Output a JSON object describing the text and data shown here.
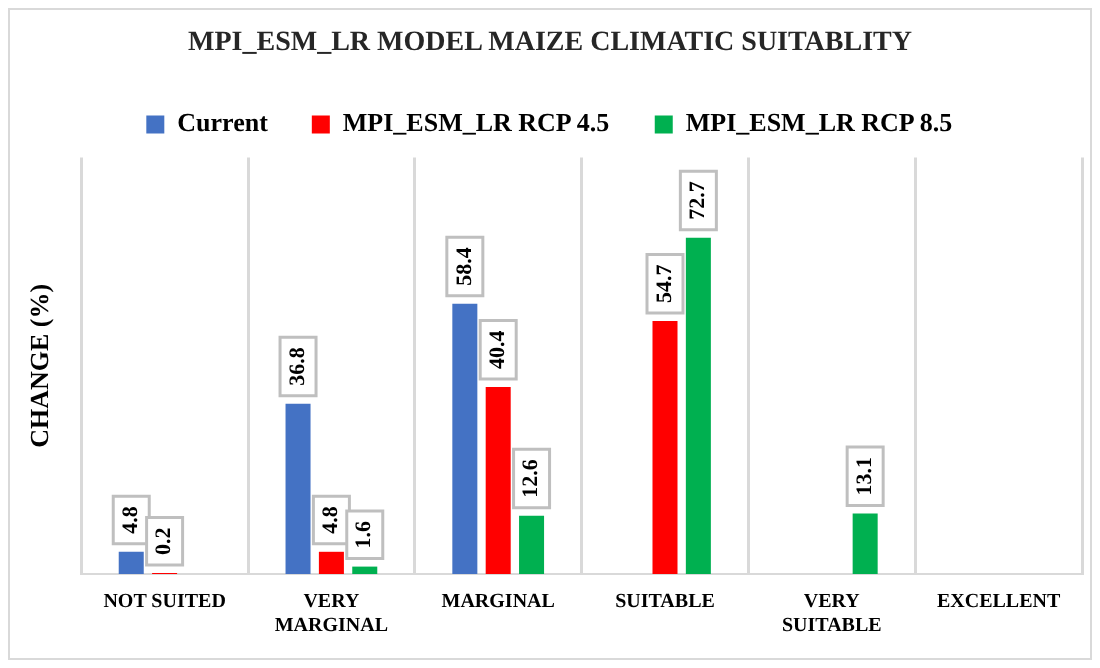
{
  "chart_data": {
    "type": "bar",
    "title": "MPI_ESM_LR MODEL MAIZE CLIMATIC SUITABLITY",
    "ylabel": "CHANGE (%)",
    "categories": [
      "NOT SUITED",
      "VERY\nMARGINAL",
      "MARGINAL",
      "SUITABLE",
      "VERY\nSUITABLE",
      "EXCELLENT"
    ],
    "series": [
      {
        "name": "Current",
        "color": "#4472c4",
        "values": [
          4.8,
          36.8,
          58.4,
          null,
          null,
          null
        ]
      },
      {
        "name": "MPI_ESM_LR RCP 4.5",
        "color": "#ff0000",
        "values": [
          0.2,
          4.8,
          40.4,
          54.7,
          null,
          null
        ]
      },
      {
        "name": "MPI_ESM_LR RCP 8.5",
        "color": "#00b050",
        "values": [
          null,
          1.6,
          12.6,
          72.7,
          13.1,
          null
        ]
      }
    ],
    "data_labels": true,
    "grid": "x",
    "legend": "top"
  }
}
